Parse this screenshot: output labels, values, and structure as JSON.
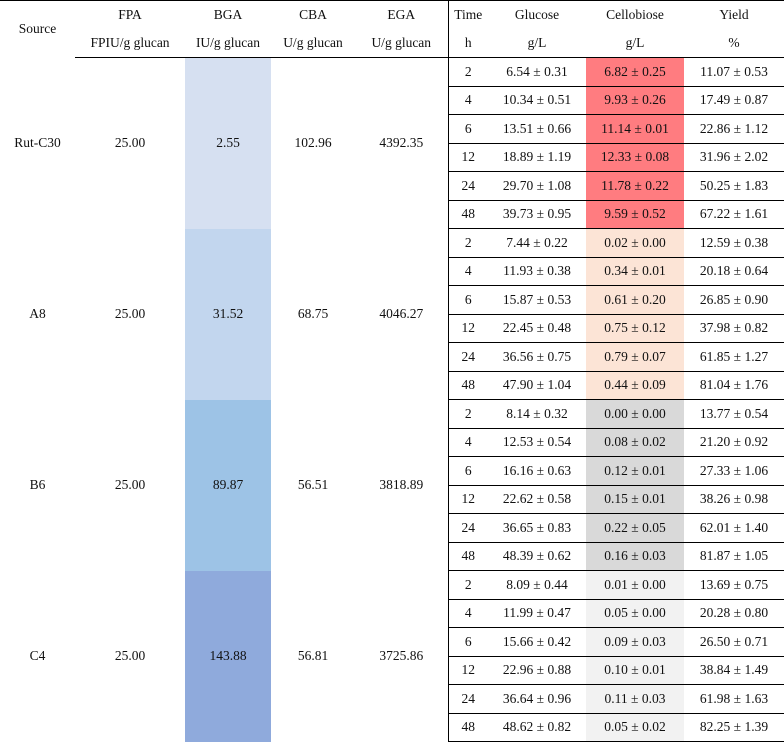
{
  "header": {
    "row1": [
      "Source",
      "FPA",
      "BGA",
      "CBA",
      "EGA",
      "Time",
      "Glucose",
      "Cellobiose",
      "Yield"
    ],
    "row2": [
      "FPIU/g glucan",
      "IU/g glucan",
      "U/g glucan",
      "U/g glucan",
      "h",
      "g/L",
      "g/L",
      "%"
    ]
  },
  "groups": [
    {
      "source": "Rut-C30",
      "fpa": "25.00",
      "bga": "2.55",
      "cba": "102.96",
      "ega": "4392.35",
      "rows": [
        {
          "time": "2",
          "glucose": "6.54 ± 0.31",
          "cellobiose": "6.82 ± 0.25",
          "yield": "11.07 ± 0.53"
        },
        {
          "time": "4",
          "glucose": "10.34 ± 0.51",
          "cellobiose": "9.93 ± 0.26",
          "yield": "17.49 ± 0.87"
        },
        {
          "time": "6",
          "glucose": "13.51 ± 0.66",
          "cellobiose": "11.14 ± 0.01",
          "yield": "22.86 ± 1.12"
        },
        {
          "time": "12",
          "glucose": "18.89 ± 1.19",
          "cellobiose": "12.33 ± 0.08",
          "yield": "31.96 ± 2.02"
        },
        {
          "time": "24",
          "glucose": "29.70 ± 1.08",
          "cellobiose": "11.78 ± 0.22",
          "yield": "50.25 ± 1.83"
        },
        {
          "time": "48",
          "glucose": "39.73 ± 0.95",
          "cellobiose": "9.59 ± 0.52",
          "yield": "67.22 ± 1.61"
        }
      ]
    },
    {
      "source": "A8",
      "fpa": "25.00",
      "bga": "31.52",
      "cba": "68.75",
      "ega": "4046.27",
      "rows": [
        {
          "time": "2",
          "glucose": "7.44 ± 0.22",
          "cellobiose": "0.02 ± 0.00",
          "yield": "12.59 ± 0.38"
        },
        {
          "time": "4",
          "glucose": "11.93 ± 0.38",
          "cellobiose": "0.34 ± 0.01",
          "yield": "20.18 ± 0.64"
        },
        {
          "time": "6",
          "glucose": "15.87 ± 0.53",
          "cellobiose": "0.61 ± 0.20",
          "yield": "26.85 ± 0.90"
        },
        {
          "time": "12",
          "glucose": "22.45 ± 0.48",
          "cellobiose": "0.75 ± 0.12",
          "yield": "37.98 ± 0.82"
        },
        {
          "time": "24",
          "glucose": "36.56 ± 0.75",
          "cellobiose": "0.79 ± 0.07",
          "yield": "61.85 ± 1.27"
        },
        {
          "time": "48",
          "glucose": "47.90 ± 1.04",
          "cellobiose": "0.44 ± 0.09",
          "yield": "81.04 ± 1.76"
        }
      ]
    },
    {
      "source": "B6",
      "fpa": "25.00",
      "bga": "89.87",
      "cba": "56.51",
      "ega": "3818.89",
      "rows": [
        {
          "time": "2",
          "glucose": "8.14 ± 0.32",
          "cellobiose": "0.00 ± 0.00",
          "yield": "13.77 ± 0.54"
        },
        {
          "time": "4",
          "glucose": "12.53 ± 0.54",
          "cellobiose": "0.08 ± 0.02",
          "yield": "21.20 ± 0.92"
        },
        {
          "time": "6",
          "glucose": "16.16 ± 0.63",
          "cellobiose": "0.12 ± 0.01",
          "yield": "27.33 ± 1.06"
        },
        {
          "time": "12",
          "glucose": "22.62 ± 0.58",
          "cellobiose": "0.15 ± 0.01",
          "yield": "38.26 ± 0.98"
        },
        {
          "time": "24",
          "glucose": "36.65 ± 0.83",
          "cellobiose": "0.22 ± 0.05",
          "yield": "62.01 ± 1.40"
        },
        {
          "time": "48",
          "glucose": "48.39 ± 0.62",
          "cellobiose": "0.16 ± 0.03",
          "yield": "81.87 ± 1.05"
        }
      ]
    },
    {
      "source": "C4",
      "fpa": "25.00",
      "bga": "143.88",
      "cba": "56.81",
      "ega": "3725.86",
      "rows": [
        {
          "time": "2",
          "glucose": "8.09 ± 0.44",
          "cellobiose": "0.01 ± 0.00",
          "yield": "13.69 ± 0.75"
        },
        {
          "time": "4",
          "glucose": "11.99 ± 0.47",
          "cellobiose": "0.05 ± 0.00",
          "yield": "20.28 ± 0.80"
        },
        {
          "time": "6",
          "glucose": "15.66 ± 0.42",
          "cellobiose": "0.09 ± 0.03",
          "yield": "26.50 ± 0.71"
        },
        {
          "time": "12",
          "glucose": "22.96 ± 0.88",
          "cellobiose": "0.10 ± 0.01",
          "yield": "38.84 ± 1.49"
        },
        {
          "time": "24",
          "glucose": "36.64 ± 0.96",
          "cellobiose": "0.11 ± 0.03",
          "yield": "61.98 ± 1.63"
        },
        {
          "time": "48",
          "glucose": "48.62 ± 0.82",
          "cellobiose": "0.05 ± 0.02",
          "yield": "82.25 ± 1.39"
        }
      ]
    }
  ],
  "colors": {
    "bga_shades": [
      "#d6e0f1",
      "#c2d6ee",
      "#9dc3e6",
      "#8faadc"
    ],
    "cellobiose_shades": [
      "#ff7c80",
      "#fce4d6",
      "#d9d9d9",
      "#f2f2f2"
    ]
  }
}
